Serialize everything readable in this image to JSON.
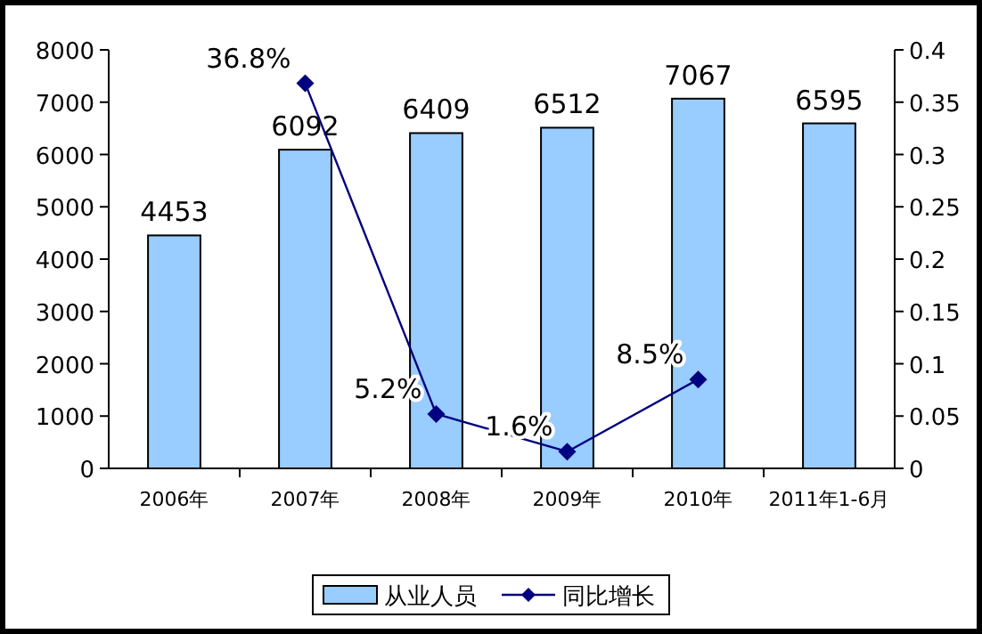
{
  "chart_data": {
    "type": "bar",
    "categories": [
      "2006年",
      "2007年",
      "2008年",
      "2009年",
      "2010年",
      "2011年1-6月"
    ],
    "series": [
      {
        "name": "从业人员",
        "color": "#99ccff",
        "values": [
          4453,
          6092,
          6409,
          6512,
          7067,
          6595
        ],
        "value_labels": [
          "4453",
          "6092",
          "6409",
          "6512",
          "7067",
          "6595"
        ]
      },
      {
        "name": "同比增长",
        "type": "line",
        "axis": "y2",
        "color": "#000080",
        "marker": "diamond",
        "values": [
          null,
          0.368,
          0.052,
          0.016,
          0.085,
          null
        ],
        "value_labels": [
          null,
          "36.8%",
          "5.2%",
          "1.6%",
          "8.5%",
          null
        ]
      }
    ],
    "ylim": [
      0,
      8000
    ],
    "yticks": [
      0,
      1000,
      2000,
      3000,
      4000,
      5000,
      6000,
      7000,
      8000
    ],
    "y2lim": [
      0,
      0.4
    ],
    "y2ticks": [
      0,
      0.05,
      0.1,
      0.15,
      0.2,
      0.25,
      0.3,
      0.35,
      0.4
    ],
    "grid": false,
    "legend": "bottom"
  }
}
